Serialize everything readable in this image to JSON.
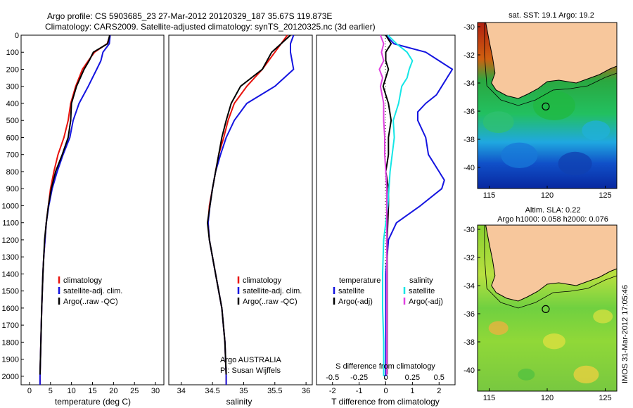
{
  "title_line1": "Argo profile: CS 5903685_23 27-Mar-2012 20120329_187 35.67S 119.873E",
  "title_line2": "Climatology: CARS2009. Satellite-adjusted climatology: synTS_20120325.nc (3d earlier)",
  "colors": {
    "clim": "#e8120c",
    "sat": "#1414e0",
    "argo": "#000000",
    "sat_s": "#14e6e6",
    "argo_s": "#e040e0",
    "land": "#f7c79c"
  },
  "chart_data": [
    {
      "type": "line",
      "id": "temperature",
      "xlabel": "temperature (deg C)",
      "ylabel": "",
      "xlim": [
        -2,
        32
      ],
      "ylim": [
        2050,
        0
      ],
      "xticks": [
        0,
        5,
        10,
        15,
        20,
        25,
        30
      ],
      "yticks": [
        0,
        100,
        200,
        300,
        400,
        500,
        600,
        700,
        800,
        900,
        1000,
        1100,
        1200,
        1300,
        1400,
        1500,
        1600,
        1700,
        1800,
        1900,
        2000
      ],
      "legend": [
        "climatology",
        "satellite-adj. clim.",
        "Argo(..raw -QC)"
      ],
      "legend_position": "lower-center",
      "series": [
        {
          "name": "climatology",
          "depth": [
            0,
            50,
            100,
            150,
            200,
            300,
            400,
            500,
            600,
            700,
            800,
            900,
            1000,
            1100,
            1200,
            1300,
            1400,
            1600,
            1800,
            2000,
            2050
          ],
          "values": [
            19.2,
            18.5,
            15.5,
            14,
            12.6,
            11,
            9.8,
            9.2,
            8.2,
            6.8,
            5.8,
            5,
            4.5,
            4,
            3.7,
            3.4,
            3.2,
            2.9,
            2.7,
            2.5,
            2.5
          ]
        },
        {
          "name": "satellite-adj. clim.",
          "depth": [
            0,
            50,
            100,
            150,
            200,
            300,
            400,
            500,
            600,
            700,
            800,
            900,
            1000,
            1100,
            1200,
            1300,
            1400,
            1600,
            1800,
            2000,
            2050
          ],
          "values": [
            19.2,
            19,
            17.5,
            17,
            16,
            14,
            11.8,
            10.4,
            9.6,
            8,
            6.6,
            5.4,
            4.6,
            4,
            3.7,
            3.4,
            3.2,
            2.9,
            2.7,
            2.5,
            2.5
          ]
        },
        {
          "name": "Argo(..raw -QC)",
          "depth": [
            0,
            50,
            100,
            150,
            200,
            300,
            400,
            500,
            600,
            700,
            800,
            900,
            1000,
            1100,
            1200,
            1300,
            1400,
            1600,
            1800,
            1990
          ],
          "values": [
            19.1,
            18.6,
            15.2,
            14.2,
            13,
            11.2,
            10,
            9.8,
            9.2,
            7.8,
            6.2,
            5.2,
            4.5,
            4,
            3.6,
            3.4,
            3.2,
            2.9,
            2.7,
            2.5
          ]
        }
      ]
    },
    {
      "type": "line",
      "id": "salinity",
      "xlabel": "salinity",
      "ylabel": "",
      "xlim": [
        33.8,
        36.1
      ],
      "ylim": [
        2050,
        0
      ],
      "xticks": [
        34,
        34.5,
        35,
        35.5,
        36
      ],
      "xticklabels": [
        "34",
        "34.5",
        "35",
        "35.5",
        "36"
      ],
      "legend": [
        "climatology",
        "satellite-adj. clim.",
        "Argo(..raw -QC)"
      ],
      "legend_position": "lower-center",
      "annotation": [
        "Argo AUSTRALIA",
        "PI: Susan Wijffels"
      ],
      "series": [
        {
          "name": "climatology",
          "depth": [
            0,
            50,
            100,
            200,
            300,
            400,
            500,
            600,
            700,
            800,
            900,
            1000,
            1100,
            1200,
            1400,
            1600,
            1800,
            2000,
            2050
          ],
          "values": [
            35.7,
            35.6,
            35.5,
            35.3,
            35.05,
            34.85,
            34.75,
            34.68,
            34.6,
            34.55,
            34.5,
            34.45,
            34.43,
            34.45,
            34.55,
            34.65,
            34.7,
            34.72,
            34.72
          ]
        },
        {
          "name": "satellite-adj. clim.",
          "depth": [
            0,
            50,
            100,
            200,
            300,
            400,
            500,
            600,
            700,
            800,
            900,
            1000,
            1100,
            1200,
            1400,
            1600,
            1800,
            2000,
            2050
          ],
          "values": [
            35.8,
            35.75,
            35.75,
            35.8,
            35.5,
            35.05,
            34.85,
            34.72,
            34.63,
            34.55,
            34.5,
            34.46,
            34.43,
            34.45,
            34.55,
            34.65,
            34.7,
            34.72,
            34.72
          ]
        },
        {
          "name": "Argo(..raw -QC)",
          "depth": [
            0,
            50,
            100,
            200,
            300,
            400,
            500,
            600,
            700,
            800,
            900,
            1000,
            1100,
            1200,
            1400,
            1600,
            1800,
            1990
          ],
          "values": [
            35.75,
            35.6,
            35.45,
            35.3,
            34.95,
            34.8,
            34.72,
            34.65,
            34.6,
            34.55,
            34.5,
            34.46,
            34.42,
            34.45,
            34.55,
            34.65,
            34.7,
            34.72
          ]
        }
      ]
    },
    {
      "type": "line",
      "id": "difference",
      "xlabel": "T difference from climatology",
      "xlabel_top": "S difference from climatology",
      "xlim": [
        -2.6,
        2.6
      ],
      "ylim": [
        2050,
        0
      ],
      "xticks": [
        -2,
        -1,
        0,
        1,
        2
      ],
      "xticks_s": [
        -0.5,
        -0.25,
        0,
        0.25,
        0.5
      ],
      "xticklabels_s": [
        "-0.5",
        "-0.25",
        "0",
        "0.25",
        "0.5"
      ],
      "legend_headers": [
        "temperature",
        "salinity"
      ],
      "legend": [
        "satellite",
        "Argo(-adj)",
        "satellite",
        "Argo(-adj)"
      ],
      "series": [
        {
          "name": "T satellite",
          "depth": [
            0,
            50,
            100,
            150,
            200,
            250,
            300,
            350,
            400,
            450,
            500,
            600,
            700,
            800,
            850,
            900,
            1000,
            1100,
            1200,
            1400,
            1600,
            1800,
            2000
          ],
          "values": [
            0,
            0.3,
            1.5,
            2,
            2.5,
            2.3,
            2.1,
            1.9,
            1.5,
            1.2,
            1.2,
            1.5,
            1.6,
            2,
            2.2,
            2.1,
            1.3,
            0.4,
            0.1,
            0,
            0,
            0,
            0
          ]
        },
        {
          "name": "T Argo(-adj)",
          "depth": [
            0,
            50,
            100,
            150,
            200,
            250,
            300,
            400,
            500,
            600,
            700,
            800,
            900,
            1000,
            1200,
            1400,
            1600,
            1800,
            1990
          ],
          "values": [
            0,
            0.2,
            0,
            0,
            0.1,
            0,
            -0.1,
            0.1,
            0.2,
            0.1,
            0.1,
            0,
            0.1,
            0.1,
            0.05,
            0.05,
            0.05,
            0.05,
            0.05
          ]
        },
        {
          "name": "S satellite",
          "depth": [
            0,
            50,
            100,
            150,
            200,
            250,
            300,
            400,
            500,
            600,
            700,
            800,
            900,
            1000,
            1200,
            1400,
            1600,
            1800,
            2000
          ],
          "values": [
            0.02,
            0.1,
            0.2,
            0.25,
            0.22,
            0.2,
            0.15,
            0.12,
            0.07,
            0.08,
            0.06,
            0.04,
            0.03,
            0.02,
            -0.02,
            -0.03,
            -0.03,
            -0.02,
            -0.02
          ]
        },
        {
          "name": "S Argo(-adj)",
          "depth": [
            0,
            50,
            100,
            150,
            200,
            250,
            300,
            400,
            500,
            600,
            700,
            800,
            900,
            1000,
            1200,
            1400,
            1600,
            1800,
            1990
          ],
          "values": [
            -0.05,
            -0.02,
            -0.04,
            -0.02,
            -0.06,
            -0.03,
            -0.05,
            -0.02,
            -0.02,
            -0.01,
            -0.01,
            0,
            0.01,
            0.01,
            0.01,
            0.01,
            0.01,
            0.01,
            0.01
          ]
        }
      ]
    }
  ],
  "maps": {
    "top": {
      "title": "sat. SST: 19.1  Argo: 19.2",
      "yticks": [
        "-30",
        "-32",
        "-34",
        "-36",
        "-38",
        "-40"
      ],
      "xticks": [
        "115",
        "120",
        "125"
      ],
      "marker": {
        "lon": 119.873,
        "lat": -35.67
      }
    },
    "bottom": {
      "title_line1": "Altim. SLA: 0.22",
      "title_line2": "Argo h1000: 0.058 h2000: 0.076",
      "yticks": [
        "-30",
        "-32",
        "-34",
        "-36",
        "-38",
        "-40"
      ],
      "xticks": [
        "115",
        "120",
        "125"
      ],
      "marker": {
        "lon": 119.873,
        "lat": -35.67
      }
    },
    "lon_range": [
      114,
      126
    ],
    "lat_range": [
      -41.5,
      -29.7
    ]
  },
  "footer_stamp": "IMOS 31-Mar-2012 17:05:46"
}
